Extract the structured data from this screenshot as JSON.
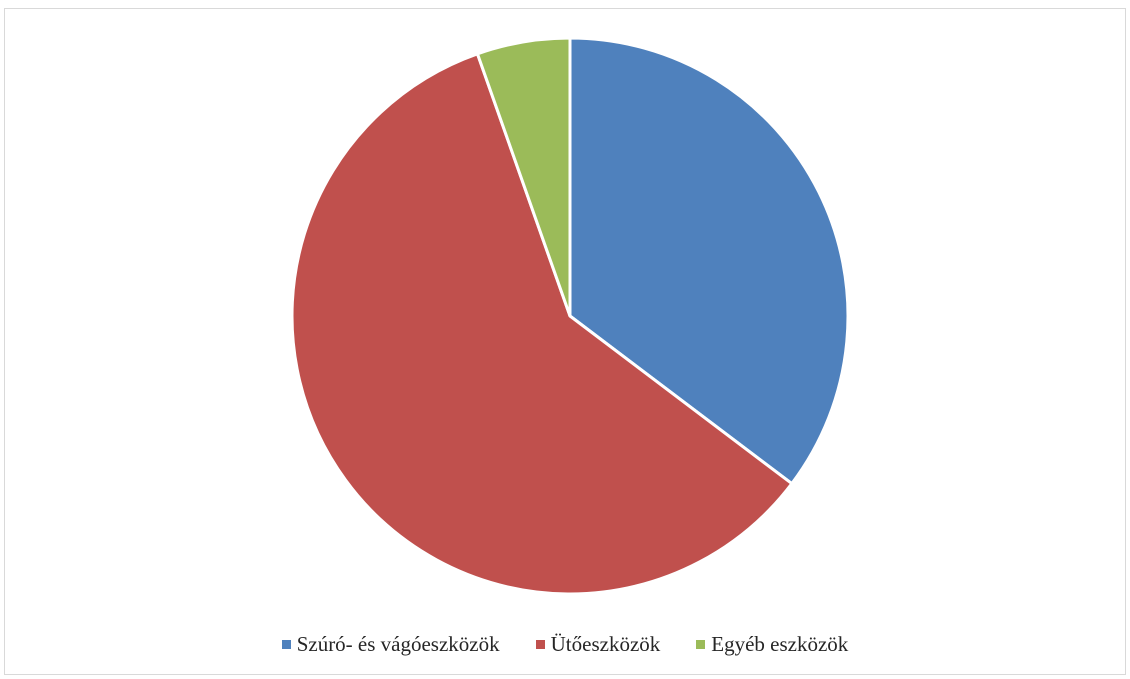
{
  "chart_data": {
    "type": "pie",
    "title": "",
    "categories": [
      "Szúró- és vágóeszközök",
      "Ütőeszközök",
      "Egyéb eszközök"
    ],
    "values": [
      35.3,
      59.3,
      5.4
    ],
    "colors": [
      "#4f81bd",
      "#c0504d",
      "#9bbb59"
    ],
    "start_angle": "12 o'clock",
    "direction": "clockwise",
    "slice_border_color": "#ffffff",
    "legend_placement": "bottom"
  },
  "legend": {
    "items": [
      {
        "label": "Szúró- és vágóeszközök",
        "color": "#4f81bd"
      },
      {
        "label": "Ütőeszközök",
        "color": "#c0504d"
      },
      {
        "label": "Egyéb eszközök",
        "color": "#9bbb59"
      }
    ]
  }
}
